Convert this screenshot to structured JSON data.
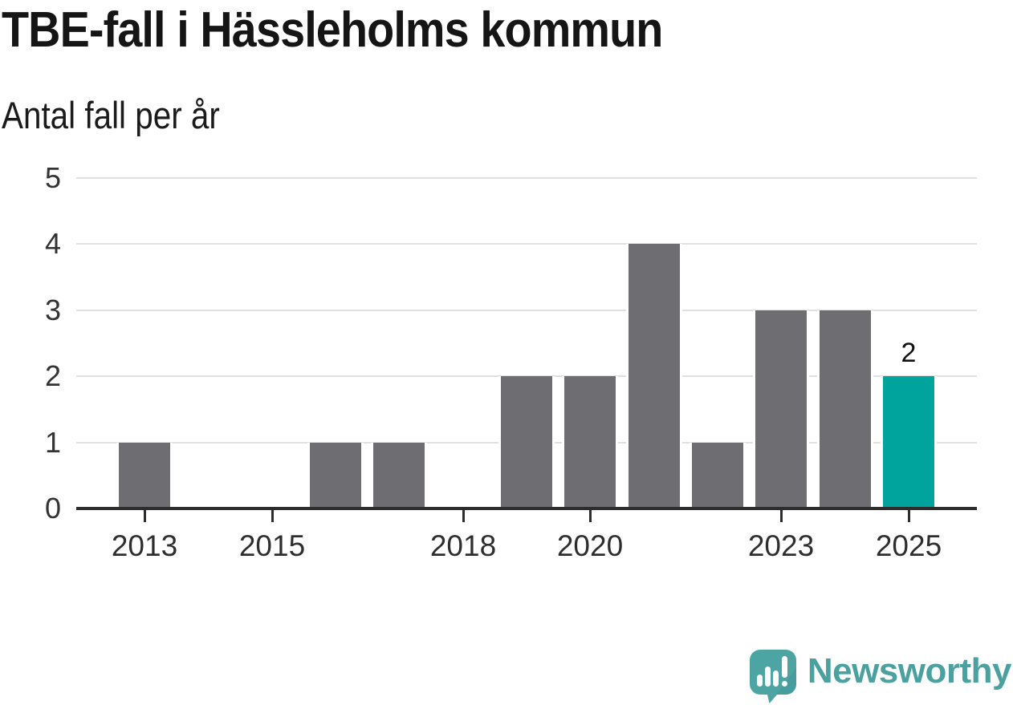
{
  "title": "TBE-fall i Hässleholms kommun",
  "subtitle": "Antal fall per år",
  "chart_data": {
    "type": "bar",
    "title": "TBE-fall i Hässleholms kommun",
    "subtitle": "Antal fall per år",
    "ylabel": "Antal fall per år",
    "categories": [
      2013,
      2014,
      2015,
      2016,
      2017,
      2018,
      2019,
      2020,
      2021,
      2022,
      2023,
      2024,
      2025
    ],
    "values": [
      1,
      0,
      0,
      1,
      1,
      0,
      2,
      2,
      4,
      1,
      3,
      3,
      2
    ],
    "ylim": [
      0,
      5
    ],
    "y_ticks": [
      0,
      1,
      2,
      3,
      4,
      5
    ],
    "x_tick_years": [
      2013,
      2015,
      2018,
      2020,
      2023,
      2025
    ],
    "grid": "horizontal",
    "legend": "none",
    "highlight_year": 2025,
    "annotation": {
      "year": 2025,
      "label": "2"
    },
    "colors": {
      "bar": "#6e6d71",
      "highlight": "#00a49c",
      "gridline": "#e0e0e0",
      "axis": "#2d2d2d",
      "tick_label": "#2e2e2e"
    }
  },
  "logo": {
    "text": "Newsworthy",
    "color": "#4ba1a0",
    "icon": "newsworthy-speech-bubble-bar-chart-icon"
  }
}
